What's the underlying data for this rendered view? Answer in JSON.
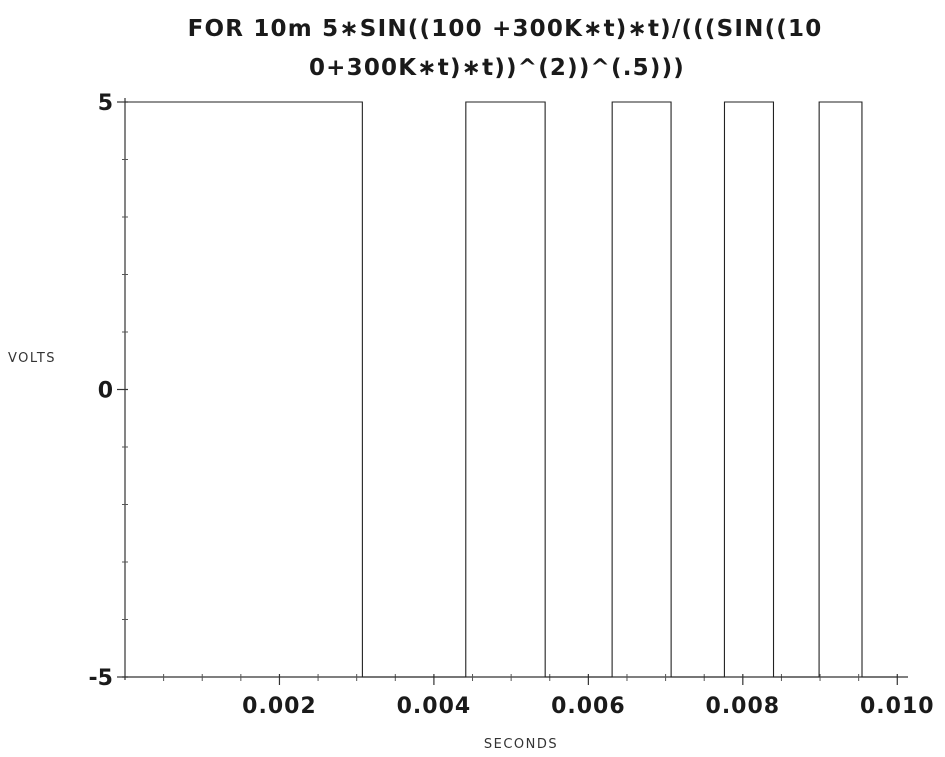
{
  "chart_data": {
    "type": "line",
    "title_line1": "FOR 10m 5∗SIN((100 +300K∗t)∗t)/(((SIN((10",
    "title_line2": "0+300K∗t)∗t))^(2))^(.5)))",
    "xlabel": "SECONDS",
    "ylabel": "VOLTS",
    "xlim": [
      0,
      0.0101
    ],
    "ylim": [
      -5,
      5
    ],
    "x_ticks": [
      0.002,
      0.004,
      0.006,
      0.008,
      0.01
    ],
    "x_tick_labels": [
      "0.002",
      "0.004",
      "0.006",
      "0.008",
      "0.010"
    ],
    "y_ticks": [
      -5,
      0,
      5
    ],
    "y_tick_labels": [
      "-5",
      "0",
      "5"
    ],
    "grid": false,
    "series": [
      {
        "function": "5*SIN((100+300K*t)*t)/(((SIN((100+300K*t)*t))^(2))^(.5))",
        "f0": 100,
        "k": 300000,
        "t_end": 0.01,
        "color": "#222222"
      }
    ]
  }
}
